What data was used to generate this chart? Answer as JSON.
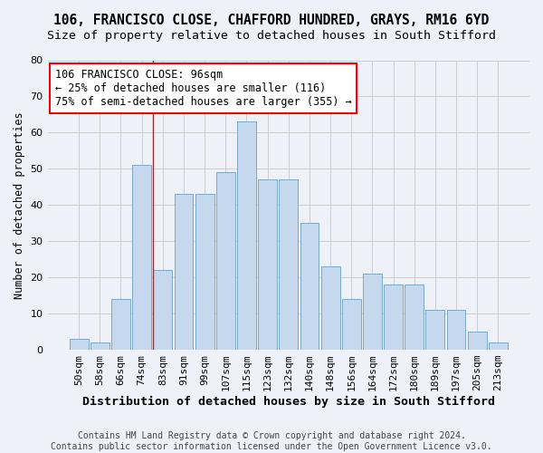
{
  "title": "106, FRANCISCO CLOSE, CHAFFORD HUNDRED, GRAYS, RM16 6YD",
  "subtitle": "Size of property relative to detached houses in South Stifford",
  "xlabel": "Distribution of detached houses by size in South Stifford",
  "ylabel": "Number of detached properties",
  "categories": [
    "50sqm",
    "58sqm",
    "66sqm",
    "74sqm",
    "83sqm",
    "91sqm",
    "99sqm",
    "107sqm",
    "115sqm",
    "123sqm",
    "132sqm",
    "140sqm",
    "148sqm",
    "156sqm",
    "164sqm",
    "172sqm",
    "180sqm",
    "189sqm",
    "197sqm",
    "205sqm",
    "213sqm"
  ],
  "values": [
    3,
    2,
    14,
    51,
    22,
    43,
    43,
    49,
    63,
    47,
    47,
    35,
    23,
    14,
    21,
    18,
    18,
    11,
    11,
    5,
    2
  ],
  "bar_color": "#c5d8ed",
  "bar_edge_color": "#7aaac8",
  "grid_color": "#cccccc",
  "bg_color": "#eef2f8",
  "annotation_text": "106 FRANCISCO CLOSE: 96sqm\n← 25% of detached houses are smaller (116)\n75% of semi-detached houses are larger (355) →",
  "annotation_box_color": "white",
  "annotation_box_edge": "red",
  "vline_color": "red",
  "vline_x": 3.55,
  "ylim": [
    0,
    80
  ],
  "yticks": [
    0,
    10,
    20,
    30,
    40,
    50,
    60,
    70,
    80
  ],
  "footer": "Contains HM Land Registry data © Crown copyright and database right 2024.\nContains public sector information licensed under the Open Government Licence v3.0.",
  "title_fontsize": 10.5,
  "subtitle_fontsize": 9.5,
  "xlabel_fontsize": 9.5,
  "ylabel_fontsize": 8.5,
  "tick_fontsize": 8,
  "annotation_fontsize": 8.5,
  "footer_fontsize": 7
}
